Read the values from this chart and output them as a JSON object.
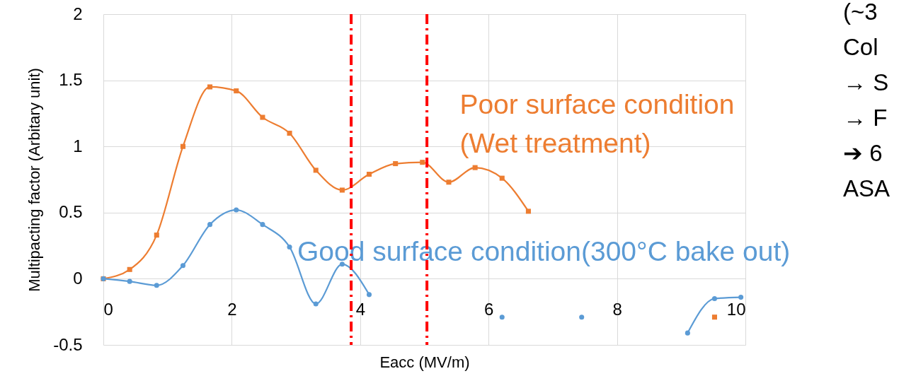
{
  "chart_data": {
    "type": "line",
    "xlabel": "Eacc (MV/m)",
    "ylabel": "Multipacting factor (Arbitary unit)",
    "x": [
      0,
      0.41,
      0.83,
      1.24,
      1.66,
      2.07,
      2.48,
      2.9,
      3.31,
      3.72,
      4.14,
      4.55,
      4.97,
      5.38,
      5.79,
      6.21,
      6.62,
      7.03,
      7.45,
      7.86,
      8.28,
      8.69,
      9.1,
      9.52,
      9.93
    ],
    "series": [
      {
        "name": "Poor surface condition\n(Wet treatment)",
        "color": "#ed7d31",
        "marker": "square",
        "values": [
          0,
          0.07,
          0.33,
          1.0,
          1.45,
          1.42,
          1.22,
          1.1,
          0.82,
          0.67,
          0.79,
          0.87,
          0.88,
          0.73,
          0.84,
          0.76,
          0.51,
          null,
          null,
          null,
          null,
          null,
          null,
          -0.29,
          null
        ]
      },
      {
        "name": "Good surface condition(300°C bake out)",
        "color": "#5b9bd5",
        "marker": "circle",
        "values": [
          0,
          -0.02,
          -0.05,
          0.1,
          0.41,
          0.52,
          0.41,
          0.24,
          -0.19,
          0.11,
          -0.12,
          null,
          null,
          null,
          null,
          -0.29,
          null,
          null,
          -0.29,
          null,
          null,
          null,
          -0.41,
          -0.15,
          -0.14
        ]
      }
    ],
    "xlim": [
      0,
      10
    ],
    "xticks": [
      0,
      2,
      4,
      6,
      8,
      10
    ],
    "ylim": [
      -0.5,
      2
    ],
    "yticks": [
      -0.5,
      0,
      0.5,
      1,
      1.5,
      2
    ],
    "grid": true,
    "ref_lines": [
      {
        "axis": "x",
        "value": 3.86,
        "color": "#ff0000",
        "line_style": "dashed"
      },
      {
        "axis": "x",
        "value": 5.04,
        "color": "#ff0000",
        "line_style": "dashed"
      }
    ],
    "annotations": [
      "(~3",
      "Col",
      "→ S",
      "→ F",
      "➔ 6",
      "ASA"
    ]
  }
}
